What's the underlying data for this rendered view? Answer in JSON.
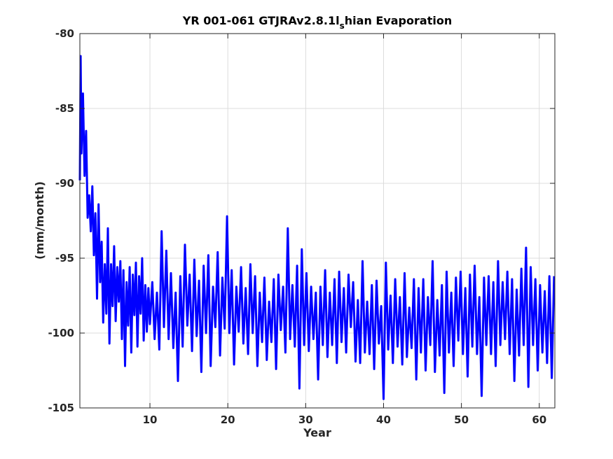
{
  "colors": {
    "series": "#0000ff",
    "axes": "#262626",
    "grid": "#dcdcdc",
    "background": "#ffffff"
  },
  "chart_data": {
    "type": "line",
    "title": {
      "main_before": "YR 001-061 GTJRAv2.8.1l",
      "subscript": "s",
      "main_after": "hian Evaporation"
    },
    "xlabel": "Year",
    "ylabel": "(mm/month)",
    "xlim": [
      1,
      62
    ],
    "ylim": [
      -105,
      -80
    ],
    "xticks": [
      10,
      20,
      30,
      40,
      50,
      60
    ],
    "xtick_labels": [
      "10",
      "20",
      "30",
      "40",
      "50",
      "60"
    ],
    "yticks": [
      -105,
      -100,
      -95,
      -90,
      -85,
      -80
    ],
    "ytick_labels": [
      "-105",
      "-100",
      "-95",
      "-90",
      "-85",
      "-80"
    ],
    "grid": true,
    "legend": "none",
    "series": [
      {
        "color": "#0000ff",
        "x": [
          1.0,
          1.1,
          1.2,
          1.4,
          1.6,
          1.8,
          2.0,
          2.2,
          2.4,
          2.6,
          2.8,
          3.0,
          3.2,
          3.4,
          3.6,
          3.8,
          4.0,
          4.2,
          4.4,
          4.6,
          4.8,
          5.0,
          5.2,
          5.4,
          5.6,
          5.8,
          6.0,
          6.2,
          6.4,
          6.6,
          6.8,
          7.0,
          7.2,
          7.4,
          7.6,
          7.8,
          8.0,
          8.2,
          8.4,
          8.6,
          8.8,
          9.0,
          9.2,
          9.4,
          9.6,
          9.8,
          10.0,
          10.3,
          10.6,
          10.9,
          11.2,
          11.5,
          11.8,
          12.1,
          12.4,
          12.7,
          13.0,
          13.3,
          13.6,
          13.9,
          14.2,
          14.5,
          14.8,
          15.1,
          15.4,
          15.7,
          16.0,
          16.3,
          16.6,
          16.9,
          17.2,
          17.5,
          17.8,
          18.1,
          18.4,
          18.7,
          19.0,
          19.3,
          19.6,
          19.9,
          20.2,
          20.5,
          20.8,
          21.1,
          21.4,
          21.7,
          22.0,
          22.3,
          22.6,
          22.9,
          23.2,
          23.5,
          23.8,
          24.1,
          24.4,
          24.7,
          25.0,
          25.3,
          25.6,
          25.9,
          26.2,
          26.5,
          26.8,
          27.1,
          27.4,
          27.7,
          28.0,
          28.3,
          28.6,
          28.9,
          29.2,
          29.5,
          29.8,
          30.1,
          30.4,
          30.7,
          31.0,
          31.3,
          31.6,
          31.9,
          32.2,
          32.5,
          32.8,
          33.1,
          33.4,
          33.7,
          34.0,
          34.3,
          34.6,
          34.9,
          35.2,
          35.5,
          35.8,
          36.1,
          36.4,
          36.7,
          37.0,
          37.3,
          37.6,
          37.9,
          38.2,
          38.5,
          38.8,
          39.1,
          39.4,
          39.7,
          40.0,
          40.3,
          40.6,
          40.9,
          41.2,
          41.5,
          41.8,
          42.1,
          42.4,
          42.7,
          43.0,
          43.3,
          43.6,
          43.9,
          44.2,
          44.5,
          44.8,
          45.1,
          45.4,
          45.7,
          46.0,
          46.3,
          46.6,
          46.9,
          47.2,
          47.5,
          47.8,
          48.1,
          48.4,
          48.7,
          49.0,
          49.3,
          49.6,
          49.9,
          50.2,
          50.5,
          50.8,
          51.1,
          51.4,
          51.7,
          52.0,
          52.3,
          52.6,
          52.9,
          53.2,
          53.5,
          53.8,
          54.1,
          54.4,
          54.7,
          55.0,
          55.3,
          55.6,
          55.9,
          56.2,
          56.5,
          56.8,
          57.1,
          57.4,
          57.7,
          58.0,
          58.3,
          58.6,
          58.9,
          59.2,
          59.5,
          59.8,
          60.1,
          60.4,
          60.7,
          61.0,
          61.3,
          61.6,
          61.9
        ],
        "y": [
          -89.8,
          -81.5,
          -88.0,
          -84.0,
          -89.5,
          -86.5,
          -92.3,
          -90.8,
          -93.2,
          -90.2,
          -94.8,
          -92.0,
          -97.7,
          -91.4,
          -96.6,
          -93.9,
          -99.3,
          -95.4,
          -98.7,
          -93.0,
          -100.7,
          -95.4,
          -98.2,
          -94.2,
          -99.2,
          -95.6,
          -97.9,
          -95.2,
          -100.4,
          -95.8,
          -102.2,
          -96.6,
          -99.5,
          -95.6,
          -101.3,
          -96.1,
          -98.8,
          -95.3,
          -100.9,
          -96.2,
          -98.7,
          -95.0,
          -100.5,
          -96.8,
          -99.9,
          -97.0,
          -99.4,
          -96.6,
          -100.4,
          -97.3,
          -101.1,
          -93.2,
          -99.6,
          -94.5,
          -100.4,
          -96.0,
          -101.0,
          -97.3,
          -103.2,
          -96.2,
          -100.9,
          -94.1,
          -99.5,
          -96.1,
          -101.2,
          -95.1,
          -100.2,
          -96.5,
          -102.6,
          -95.5,
          -100.0,
          -94.8,
          -102.2,
          -96.9,
          -99.6,
          -94.6,
          -101.5,
          -96.3,
          -99.7,
          -92.2,
          -100.0,
          -95.8,
          -102.1,
          -96.9,
          -99.9,
          -95.6,
          -100.7,
          -97.0,
          -101.4,
          -95.4,
          -100.0,
          -96.2,
          -102.2,
          -97.3,
          -100.6,
          -96.3,
          -101.8,
          -97.9,
          -100.6,
          -96.4,
          -102.4,
          -96.1,
          -99.8,
          -96.9,
          -101.3,
          -93.0,
          -100.4,
          -96.8,
          -100.9,
          -95.5,
          -103.7,
          -94.4,
          -100.8,
          -96.0,
          -101.2,
          -96.9,
          -100.4,
          -97.3,
          -103.1,
          -96.9,
          -100.8,
          -95.8,
          -101.6,
          -97.3,
          -100.8,
          -96.4,
          -102.0,
          -95.9,
          -100.6,
          -97.0,
          -101.3,
          -96.1,
          -99.6,
          -96.6,
          -101.9,
          -97.8,
          -102.0,
          -95.2,
          -101.3,
          -97.9,
          -101.4,
          -96.8,
          -102.4,
          -96.5,
          -100.7,
          -98.2,
          -104.4,
          -95.3,
          -101.1,
          -97.5,
          -102.0,
          -96.4,
          -100.9,
          -97.6,
          -102.1,
          -96.0,
          -101.6,
          -98.3,
          -101.0,
          -96.4,
          -103.1,
          -97.0,
          -101.3,
          -96.4,
          -102.5,
          -97.6,
          -100.8,
          -95.2,
          -102.6,
          -97.8,
          -101.5,
          -96.8,
          -104.0,
          -95.9,
          -101.3,
          -97.3,
          -102.2,
          -96.3,
          -100.5,
          -95.9,
          -101.4,
          -97.0,
          -102.9,
          -96.1,
          -100.9,
          -95.5,
          -101.4,
          -97.6,
          -104.2,
          -96.3,
          -100.8,
          -96.2,
          -101.4,
          -96.6,
          -102.2,
          -95.2,
          -100.8,
          -96.6,
          -100.4,
          -95.9,
          -101.4,
          -96.4,
          -103.2,
          -97.1,
          -101.5,
          -95.7,
          -100.8,
          -94.3,
          -103.6,
          -95.6,
          -100.8,
          -96.4,
          -102.5,
          -96.8,
          -101.3,
          -97.2,
          -102.0,
          -96.2,
          -103.0,
          -96.2
        ]
      }
    ]
  }
}
